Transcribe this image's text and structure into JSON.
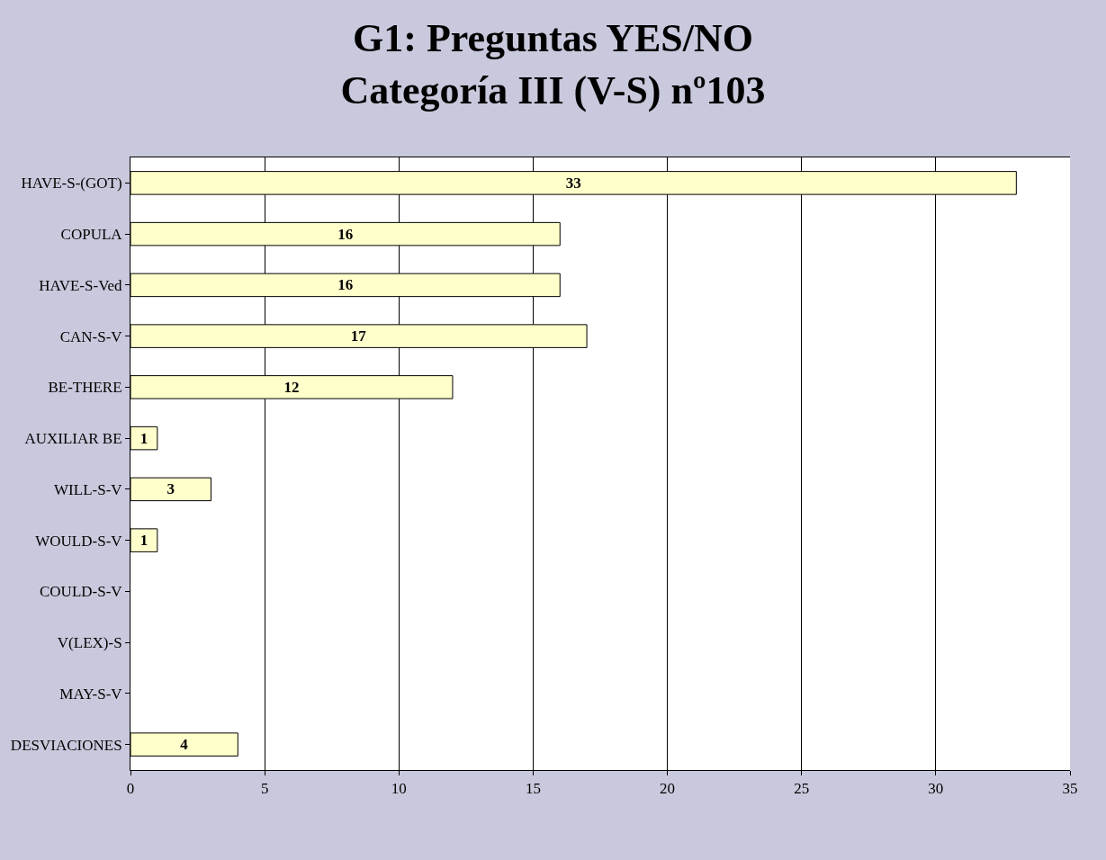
{
  "chart_data": {
    "type": "bar",
    "orientation": "horizontal",
    "title": "G1: Preguntas YES/NO\nCategoría III (V-S) nº103",
    "categories": [
      "HAVE-S-(GOT)",
      "COPULA",
      "HAVE-S-Ved",
      "CAN-S-V",
      "BE-THERE",
      "AUXILIAR BE",
      "WILL-S-V",
      "WOULD-S-V",
      "COULD-S-V",
      "V(LEX)-S",
      "MAY-S-V",
      "DESVIACIONES"
    ],
    "values": [
      33,
      16,
      16,
      17,
      12,
      1,
      3,
      1,
      null,
      null,
      null,
      4
    ],
    "color": "#ffffcc",
    "xlim": [
      0,
      35
    ],
    "xticks": [
      0,
      5,
      10,
      15,
      20,
      25,
      30,
      35
    ],
    "grid": "x",
    "data_labels": true
  }
}
